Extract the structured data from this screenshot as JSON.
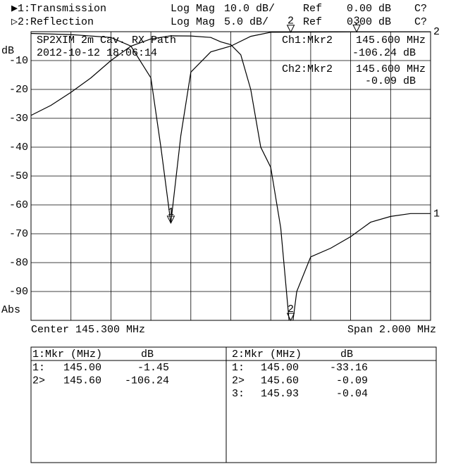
{
  "chart_data": {
    "type": "line",
    "annotations": [
      "SP2XIM 2m Cav. RX Path",
      "2012-10-12 18:06:14"
    ],
    "y_unit": "dB",
    "y_format": "Abs",
    "center": "Center 145.300 MHz",
    "span": "Span 2.000 MHz",
    "xlim": [
      144.3,
      146.3
    ],
    "ylim": [
      -100,
      0
    ],
    "y2lim": [
      -50,
      0
    ],
    "yticks": [
      -10,
      -20,
      -30,
      -40,
      -50,
      -60,
      -70,
      -80,
      -90
    ],
    "grid": true,
    "series": [
      {
        "name": "▶1:Transmission",
        "format": "Log Mag",
        "scale": "10.0 dB/",
        "ref_label": "Ref",
        "ref": "0.00 dB",
        "cal": "C?",
        "trace_label": "1",
        "color": "#000000",
        "x": [
          144.3,
          144.4,
          144.5,
          144.6,
          144.7,
          144.8,
          144.9,
          145.0,
          145.1,
          145.2,
          145.25,
          145.3,
          145.35,
          145.4,
          145.45,
          145.5,
          145.55,
          145.6,
          145.63,
          145.7,
          145.8,
          145.9,
          146.0,
          146.1,
          146.2,
          146.3
        ],
        "values": [
          -29,
          -25.5,
          -21,
          -16,
          -10,
          -5,
          -2.5,
          -1.45,
          -1.5,
          -2,
          -3.5,
          -4.5,
          -8,
          -20,
          -40,
          -47,
          -68,
          -106.24,
          -90,
          -78,
          -75,
          -71,
          -66,
          -64,
          -63,
          -63
        ]
      },
      {
        "name": "▷2:Reflection",
        "format": "Log Mag",
        "scale": "5.0 dB/",
        "ref_label": "Ref",
        "ref": "0.00 dB",
        "cal": "C?",
        "trace_label": "2",
        "color": "#000000",
        "axis": "y2",
        "x": [
          144.3,
          144.5,
          144.7,
          144.8,
          144.9,
          144.95,
          145.0,
          145.05,
          145.1,
          145.2,
          145.3,
          145.4,
          145.5,
          145.6,
          145.93,
          146.3
        ],
        "values": [
          -0.3,
          -0.5,
          -1,
          -2.5,
          -8,
          -20,
          -33.16,
          -18,
          -7,
          -3.5,
          -2.5,
          -0.8,
          -0.1,
          -0.09,
          -0.04,
          -0.02
        ]
      }
    ],
    "markers": [
      {
        "label": "1",
        "series": 1,
        "x": 145.0
      },
      {
        "label": "2",
        "series": 0,
        "x": 145.6
      },
      {
        "label": "2",
        "series": 1,
        "x": 145.6
      },
      {
        "label": "3",
        "series": 1,
        "x": 145.93
      }
    ],
    "marker_readouts": [
      {
        "channel": "Ch1:Mkr2",
        "freq": "145.600 MHz",
        "value": "-106.24 dB"
      },
      {
        "channel": "Ch2:Mkr2",
        "freq": "145.600 MHz",
        "value": "-0.09 dB"
      }
    ]
  },
  "marker_tables": [
    {
      "header": [
        "1:Mkr (MHz)",
        "dB"
      ],
      "rows": [
        [
          "1:",
          "145.00",
          "-1.45"
        ],
        [
          "2>",
          "145.60",
          "-106.24"
        ]
      ]
    },
    {
      "header": [
        "2:Mkr (MHz)",
        "dB"
      ],
      "rows": [
        [
          "1:",
          "145.00",
          "-33.16"
        ],
        [
          "2>",
          "145.60",
          "-0.09"
        ],
        [
          "3:",
          "145.93",
          "-0.04"
        ]
      ]
    }
  ]
}
